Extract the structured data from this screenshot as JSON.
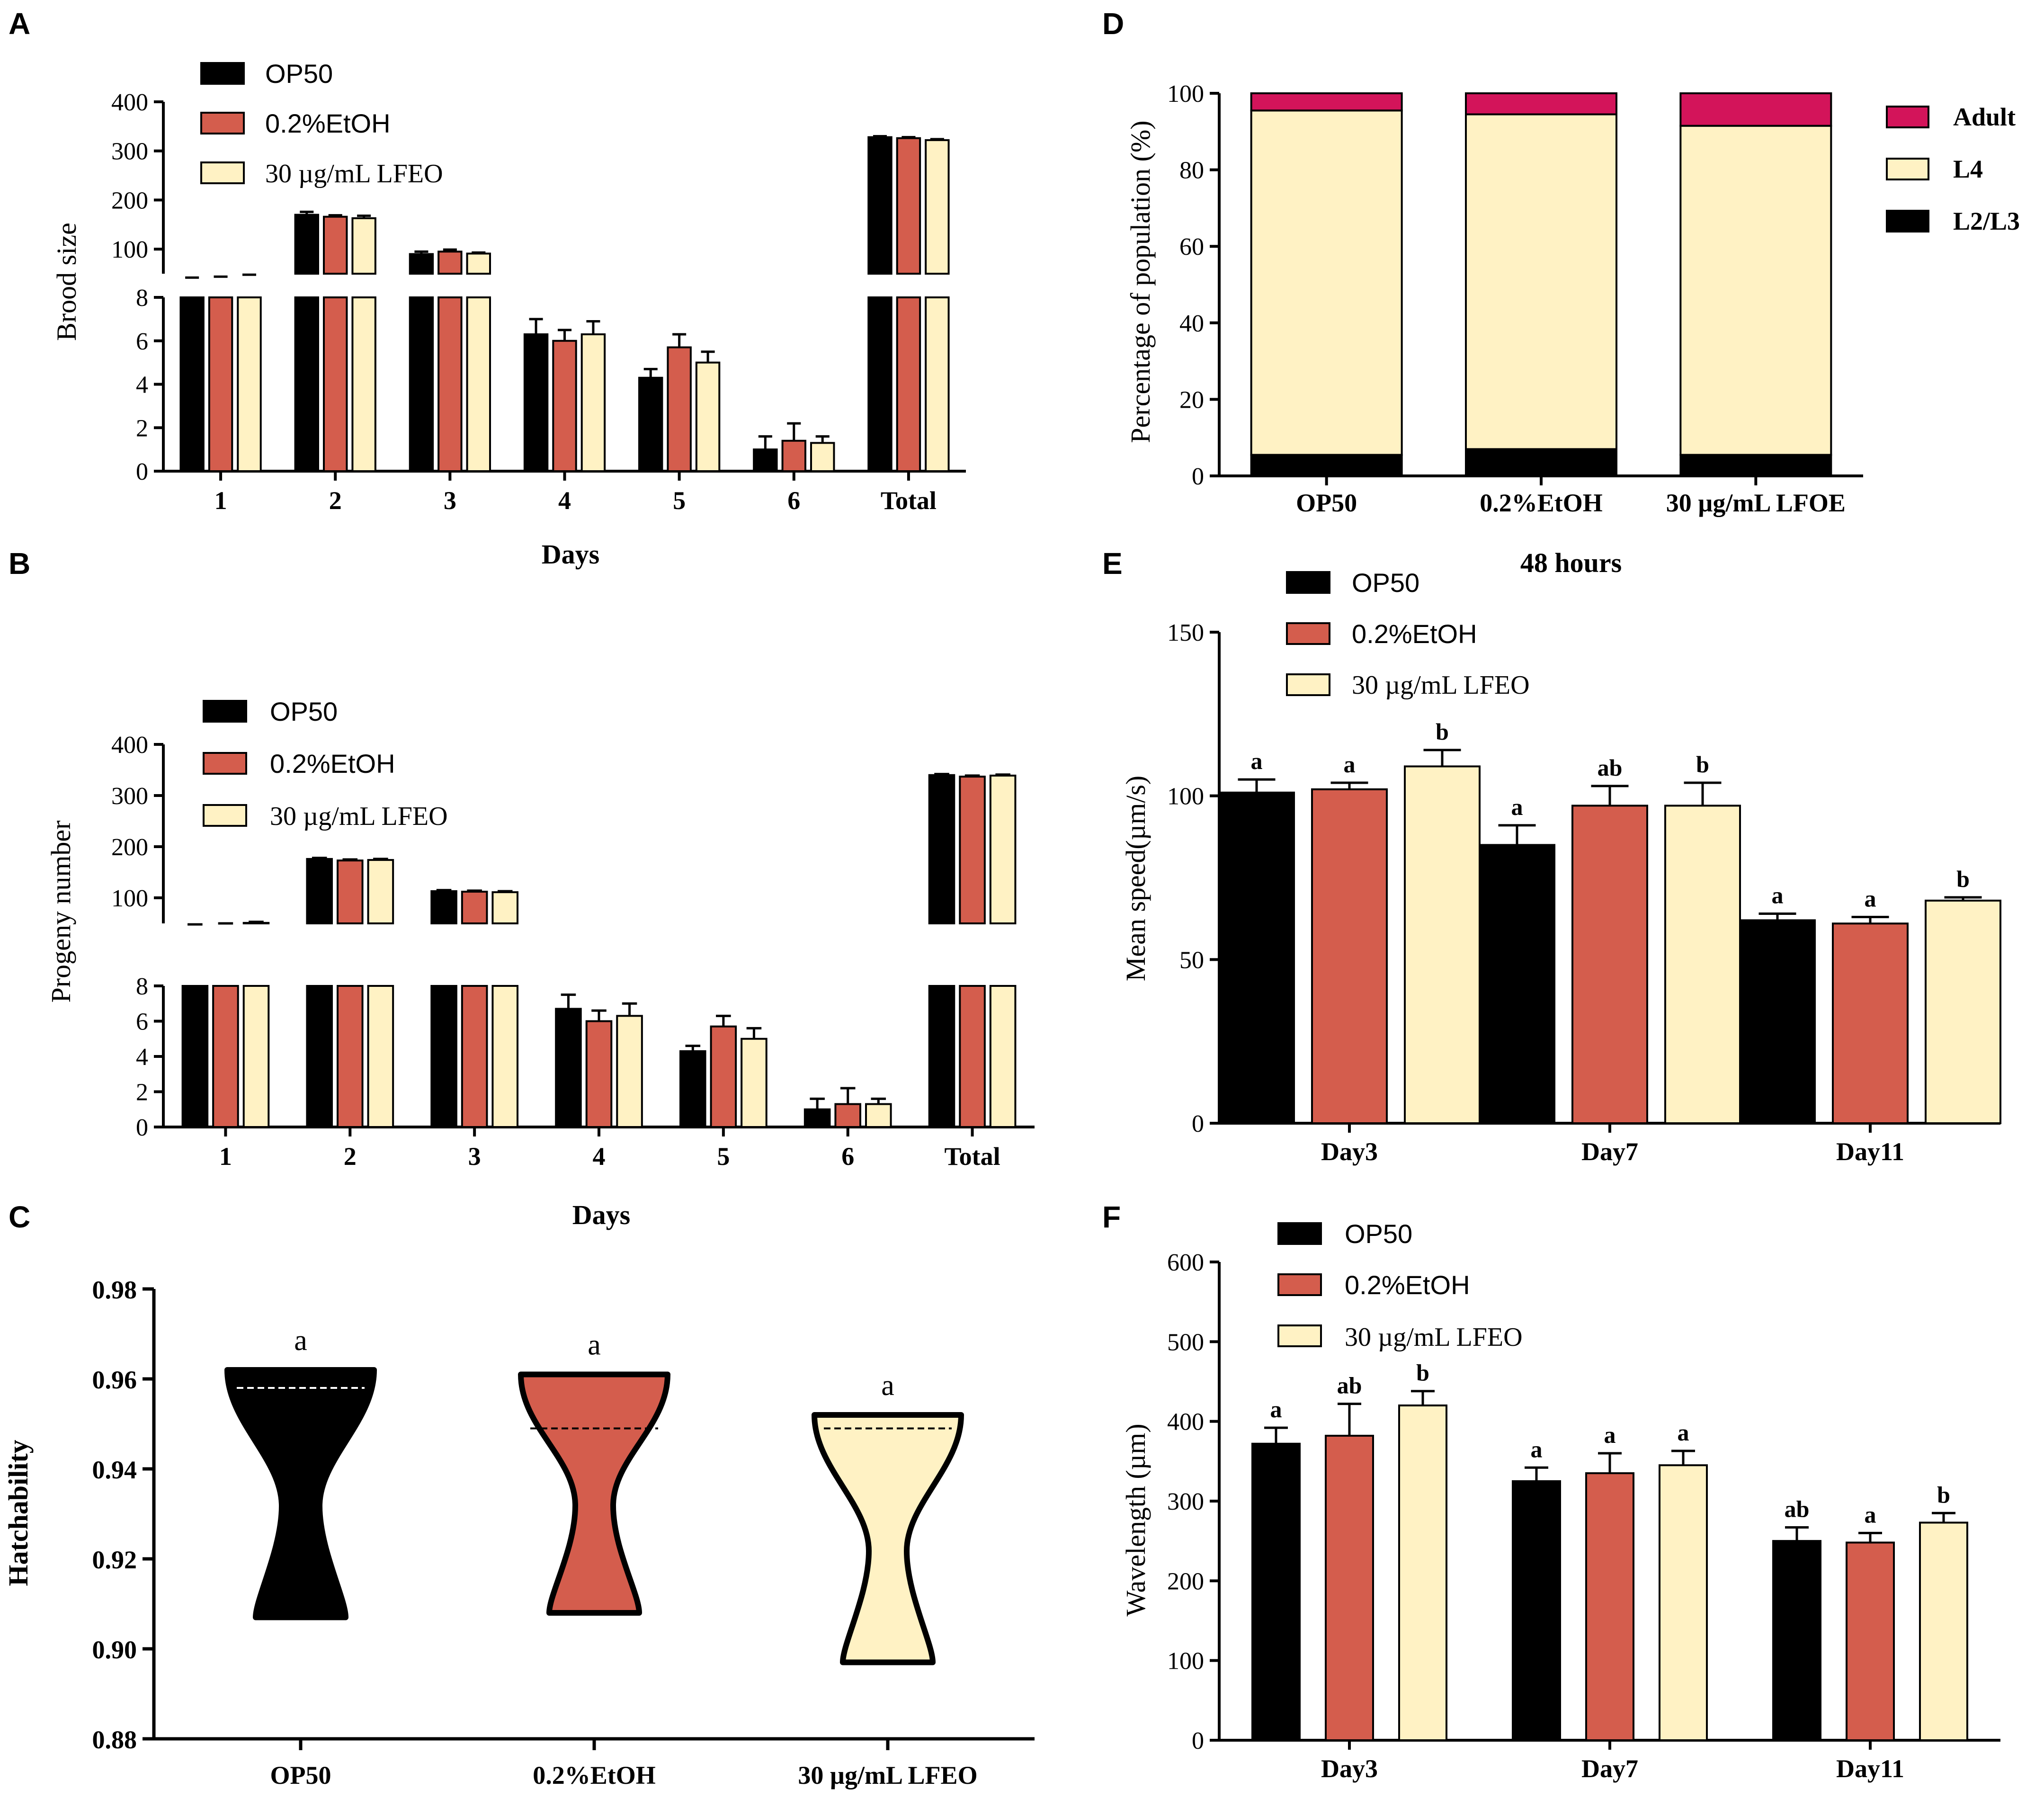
{
  "colors": {
    "op50": "#000000",
    "etoh": "#D45D4D",
    "lfeo": "#FFF2C4",
    "adult": "#D3145A",
    "l4": "#FFF2C4",
    "l23": "#000000"
  },
  "panels": {
    "A": {
      "letter": "A",
      "ylabel": "Brood size",
      "xlabel": "Days"
    },
    "B": {
      "letter": "B",
      "ylabel": "Progeny number",
      "xlabel": "Days"
    },
    "C": {
      "letter": "C",
      "ylabel": "Hatchability",
      "xlabel": ""
    },
    "D": {
      "letter": "D",
      "ylabel": "Percentage of population (%)",
      "xlabel": "48 hours"
    },
    "E": {
      "letter": "E",
      "ylabel": "Mean speed(µm/s)",
      "xlabel": ""
    },
    "F": {
      "letter": "F",
      "ylabel": "Wavelength (µm)",
      "xlabel": ""
    }
  },
  "legend_groups": [
    "OP50",
    "0.2%EtOH",
    "30 µg/mL LFEO"
  ],
  "chart_data": [
    {
      "id": "A",
      "type": "bar",
      "title": "",
      "xlabel": "Days",
      "ylabel": "Brood size",
      "categories": [
        "1",
        "2",
        "3",
        "4",
        "5",
        "6",
        "Total"
      ],
      "broken_axis": {
        "lower_range": [
          0,
          8
        ],
        "lower_ticks": [
          0,
          2,
          4,
          6,
          8
        ],
        "upper_range": [
          50,
          400
        ],
        "upper_ticks": [
          100,
          200,
          300,
          400
        ]
      },
      "series": [
        {
          "name": "OP50",
          "values": [
            40,
            170,
            90,
            6.3,
            4.3,
            1.0,
            328
          ],
          "errors": [
            2,
            6,
            5,
            0.7,
            0.4,
            0.6,
            2
          ]
        },
        {
          "name": "0.2%EtOH",
          "values": [
            42,
            166,
            95,
            6.0,
            5.7,
            1.4,
            326
          ],
          "errors": [
            2,
            3,
            4,
            0.5,
            0.6,
            0.8,
            2
          ]
        },
        {
          "name": "30 µg/mL LFEO",
          "values": [
            46,
            163,
            91,
            6.3,
            5.0,
            1.3,
            322
          ],
          "errors": [
            2,
            5,
            2,
            0.6,
            0.5,
            0.3,
            2
          ]
        }
      ]
    },
    {
      "id": "B",
      "type": "bar",
      "title": "",
      "xlabel": "Days",
      "ylabel": "Progeny number",
      "categories": [
        "1",
        "2",
        "3",
        "4",
        "5",
        "6",
        "Total"
      ],
      "broken_axis": {
        "lower_range": [
          0,
          8
        ],
        "lower_ticks": [
          0,
          2,
          4,
          6,
          8
        ],
        "upper_range": [
          50,
          400
        ],
        "upper_ticks": [
          100,
          200,
          300,
          400
        ]
      },
      "series": [
        {
          "name": "OP50",
          "values": [
            46,
            176,
            113,
            6.7,
            4.3,
            1.0,
            340
          ],
          "errors": [
            2,
            2,
            2,
            0.8,
            0.3,
            0.6,
            2
          ]
        },
        {
          "name": "0.2%EtOH",
          "values": [
            48,
            173,
            112,
            6.0,
            5.7,
            1.3,
            337
          ],
          "errors": [
            2,
            2,
            2,
            0.6,
            0.6,
            0.9,
            2
          ]
        },
        {
          "name": "30 µg/mL LFEO",
          "values": [
            51,
            174,
            111,
            6.3,
            5.0,
            1.3,
            339
          ],
          "errors": [
            2,
            2,
            2,
            0.7,
            0.6,
            0.3,
            2
          ]
        }
      ]
    },
    {
      "id": "C",
      "type": "violin",
      "title": "",
      "xlabel": "",
      "ylabel": "Hatchability",
      "categories": [
        "OP50",
        "0.2%EtOH",
        "30 µg/mL LFEO"
      ],
      "ylim": [
        0.88,
        0.98
      ],
      "yticks": [
        "0.88",
        "0.90",
        "0.92",
        "0.94",
        "0.96",
        "0.98"
      ],
      "groups": [
        {
          "name": "OP50",
          "min": 0.907,
          "max": 0.962,
          "median": 0.958,
          "letter": "a"
        },
        {
          "name": "0.2%EtOH",
          "min": 0.908,
          "max": 0.961,
          "median": 0.949,
          "letter": "a"
        },
        {
          "name": "30 µg/mL LFEO",
          "min": 0.897,
          "max": 0.952,
          "median": 0.949,
          "letter": "a"
        }
      ]
    },
    {
      "id": "D",
      "type": "bar",
      "stacked": true,
      "title": "",
      "xlabel": "48 hours",
      "ylabel": "Percentage of population (%)",
      "categories": [
        "OP50",
        "0.2%EtOH",
        "30 µg/mL LFOE"
      ],
      "ylim": [
        0,
        100
      ],
      "yticks": [
        0,
        20,
        40,
        60,
        80,
        100
      ],
      "series": [
        {
          "name": "L2/L3",
          "values": [
            5.5,
            7.0,
            5.5
          ]
        },
        {
          "name": "L4",
          "values": [
            90.0,
            87.5,
            86.0
          ]
        },
        {
          "name": "Adult",
          "values": [
            4.5,
            5.5,
            8.5
          ]
        }
      ],
      "legend": [
        "Adult",
        "L4",
        "L2/L3"
      ]
    },
    {
      "id": "E",
      "type": "bar",
      "title": "",
      "xlabel": "",
      "ylabel": "Mean speed(µm/s)",
      "categories": [
        "Day3",
        "Day7",
        "Day11"
      ],
      "ylim": [
        0,
        150
      ],
      "yticks": [
        0,
        50,
        100,
        150
      ],
      "series": [
        {
          "name": "OP50",
          "values": [
            101,
            85,
            62
          ],
          "errors": [
            4,
            6,
            2
          ],
          "letters": [
            "a",
            "a",
            "a"
          ]
        },
        {
          "name": "0.2%EtOH",
          "values": [
            102,
            97,
            61
          ],
          "errors": [
            2,
            6,
            2
          ],
          "letters": [
            "a",
            "ab",
            "a"
          ]
        },
        {
          "name": "30 µg/mL LFEO",
          "values": [
            109,
            97,
            68
          ],
          "errors": [
            5,
            7,
            1
          ],
          "letters": [
            "b",
            "b",
            "b"
          ]
        }
      ]
    },
    {
      "id": "F",
      "type": "bar",
      "title": "",
      "xlabel": "",
      "ylabel": "Wavelength (µm)",
      "categories": [
        "Day3",
        "Day7",
        "Day11"
      ],
      "ylim": [
        0,
        600
      ],
      "yticks": [
        0,
        100,
        200,
        300,
        400,
        500,
        600
      ],
      "series": [
        {
          "name": "OP50",
          "values": [
            372,
            325,
            250
          ],
          "errors": [
            20,
            17,
            17
          ],
          "letters": [
            "a",
            "a",
            "ab"
          ]
        },
        {
          "name": "0.2%EtOH",
          "values": [
            382,
            335,
            248
          ],
          "errors": [
            40,
            25,
            12
          ],
          "letters": [
            "ab",
            "a",
            "a"
          ]
        },
        {
          "name": "30 µg/mL LFEO",
          "values": [
            420,
            345,
            273
          ],
          "errors": [
            18,
            18,
            12
          ],
          "letters": [
            "b",
            "a",
            "b"
          ]
        }
      ]
    }
  ]
}
